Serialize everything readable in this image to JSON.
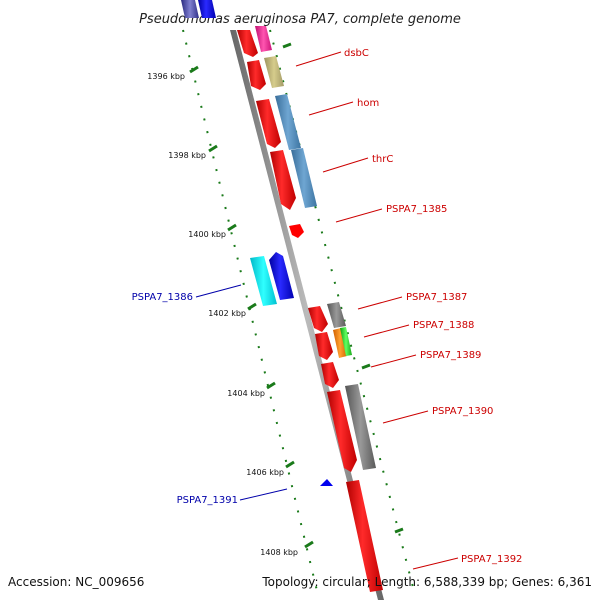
{
  "title": "Pseudomonas aeruginosa PA7, complete genome",
  "footer": {
    "accession": "Accession: NC_009656",
    "summary": "Topology: circular; Length: 6,588,339 bp; Genes: 6,361"
  },
  "ticks": [
    "1396 kbp",
    "1398 kbp",
    "1400 kbp",
    "1402 kbp",
    "1404 kbp",
    "1406 kbp",
    "1408 kbp"
  ],
  "genes": [
    {
      "id": "dsbC",
      "strand": "+"
    },
    {
      "id": "hom",
      "strand": "+"
    },
    {
      "id": "thrC",
      "strand": "+"
    },
    {
      "id": "PSPA7_1385",
      "strand": "+"
    },
    {
      "id": "PSPA7_1386",
      "strand": "-"
    },
    {
      "id": "PSPA7_1387",
      "strand": "+"
    },
    {
      "id": "PSPA7_1388",
      "strand": "+"
    },
    {
      "id": "PSPA7_1389",
      "strand": "+"
    },
    {
      "id": "PSPA7_1390",
      "strand": "+"
    },
    {
      "id": "PSPA7_1391",
      "strand": "-"
    },
    {
      "id": "PSPA7_1392",
      "strand": "+"
    }
  ],
  "colors": {
    "forward_cds": "#ff0000",
    "reverse_cds": "#0000ff",
    "backbone": "#888888",
    "ruler": "#1a7a1a",
    "forward_label": "#cc0000",
    "reverse_label": "#0000aa"
  }
}
